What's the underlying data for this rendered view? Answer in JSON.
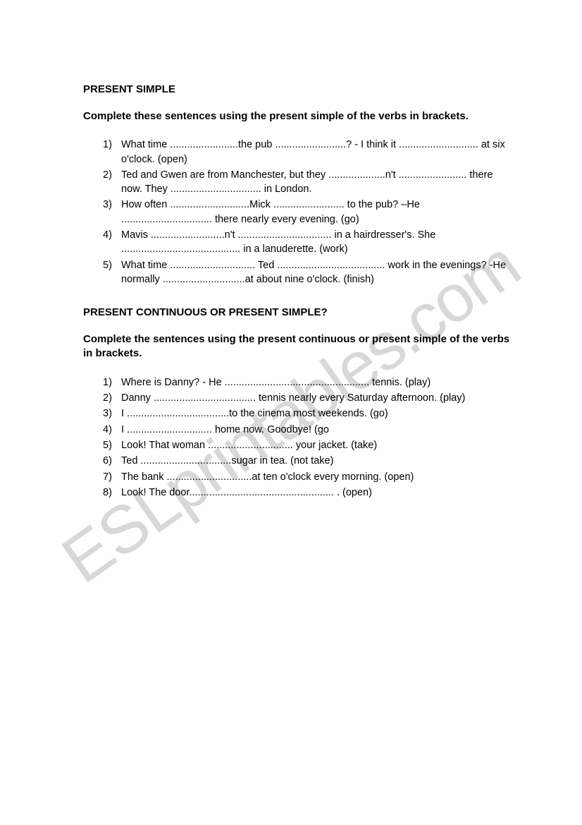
{
  "watermark": "ESLprintables.com",
  "section1": {
    "title": "PRESENT SIMPLE",
    "instruction": "Complete these sentences using the present simple of the verbs in brackets.",
    "items": [
      {
        "num": "1)",
        "text": "What time ........................the pub .........................?  - I think it ............................ at six o'clock. (open)"
      },
      {
        "num": "2)",
        "text": "Ted and Gwen are from Manchester, but they ....................n't ........................ there now. They ................................ in London."
      },
      {
        "num": "3)",
        "text": "How often ............................Mick ......................... to the pub? –He ................................ there nearly every evening. (go)"
      },
      {
        "num": "4)",
        "text": "Mavis ..........................n't ................................. in a hairdresser's. She .......................................... in a lanuderette. (work)"
      },
      {
        "num": "5)",
        "text": "What time .............................. Ted ...................................... work in the evenings? -He normally .............................at about nine o'clock. (finish)"
      }
    ]
  },
  "section2": {
    "title": "PRESENT CONTINUOUS OR PRESENT SIMPLE?",
    "instruction": "Complete the sentences using the present continuous or present simple of the verbs in brackets.",
    "items": [
      {
        "num": "1)",
        "text": "Where is Danny? - He ................................................... tennis. (play)"
      },
      {
        "num": "2)",
        "text": "Danny .................................... tennis nearly every Saturday afternoon. (play)"
      },
      {
        "num": "3)",
        "text": "I ....................................to the cinema most weekends. (go)"
      },
      {
        "num": "4)",
        "text": "I .............................. home now. Goodbye! (go"
      },
      {
        "num": "5)",
        "text": "Look! That woman .............................. your jacket. (take)"
      },
      {
        "num": "6)",
        "text": "Ted ................................sugar in tea. (not take)"
      },
      {
        "num": "7)",
        "text": "The bank ..............................at ten o'clock every morning. (open)"
      },
      {
        "num": "8)",
        "text": "Look! The door................................................... . (open)"
      }
    ]
  },
  "colors": {
    "background": "#ffffff",
    "text": "#000000",
    "watermark": "#d8d8d8"
  },
  "typography": {
    "body_fontsize": 14.5,
    "title_fontsize": 15,
    "watermark_fontsize": 95,
    "font_family": "Arial"
  }
}
